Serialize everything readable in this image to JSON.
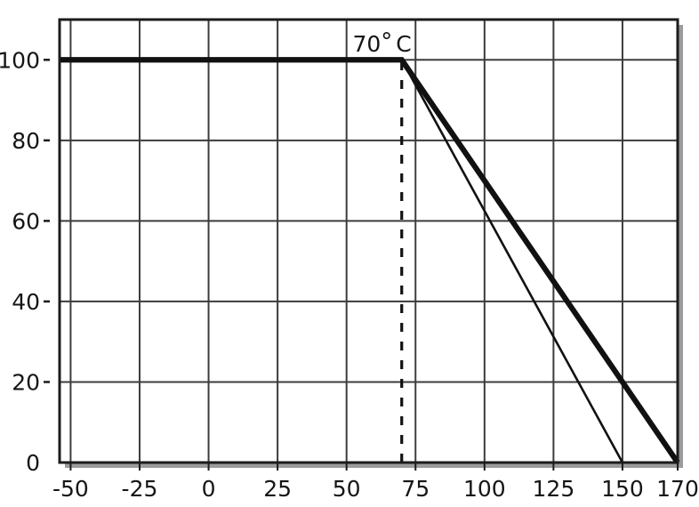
{
  "figure": {
    "background": "#ffffff"
  },
  "chart_data": {
    "type": "line",
    "title": "",
    "xlabel": "",
    "ylabel": "",
    "x_range": [
      -54,
      170
    ],
    "y_range": [
      0,
      110
    ],
    "grid": true,
    "legend": "none",
    "x_gridlines": [
      -50,
      -25,
      0,
      25,
      50,
      75,
      100,
      125,
      150
    ],
    "y_gridlines": [
      20,
      40,
      60,
      80,
      100
    ],
    "x_ticks": [
      {
        "value": -50,
        "label": "-50"
      },
      {
        "value": -25,
        "label": "-25"
      },
      {
        "value": 0,
        "label": "0"
      },
      {
        "value": 25,
        "label": "25"
      },
      {
        "value": 50,
        "label": "50"
      },
      {
        "value": 75,
        "label": "75"
      },
      {
        "value": 100,
        "label": "100"
      },
      {
        "value": 125,
        "label": "125"
      },
      {
        "value": 150,
        "label": "150"
      },
      {
        "value": 170,
        "label": "170"
      }
    ],
    "y_ticks": [
      {
        "value": 0,
        "label": "0"
      },
      {
        "value": 20,
        "label": "20"
      },
      {
        "value": 40,
        "label": "40"
      },
      {
        "value": 60,
        "label": "60"
      },
      {
        "value": 80,
        "label": "80"
      },
      {
        "value": 100,
        "label": "100"
      }
    ],
    "series": [
      {
        "name": "derating-curve-thin",
        "emphasis": "thin",
        "points": [
          [
            70,
            100
          ],
          [
            150,
            0
          ]
        ]
      },
      {
        "name": "derating-curve-bold",
        "emphasis": "thick",
        "points": [
          [
            -54,
            100
          ],
          [
            70,
            100
          ],
          [
            170,
            0
          ]
        ]
      }
    ],
    "reference_line": {
      "axis": "x",
      "value": 70,
      "from_y": 0,
      "to_y": 100,
      "style": "dashed",
      "label": "70°C"
    },
    "colors": {
      "line": "#111111",
      "grid": "#3c3c3c",
      "frame": "#1c1c1c",
      "shadow": "#9b9b9b",
      "background": "#ffffff",
      "text": "#161616"
    }
  }
}
